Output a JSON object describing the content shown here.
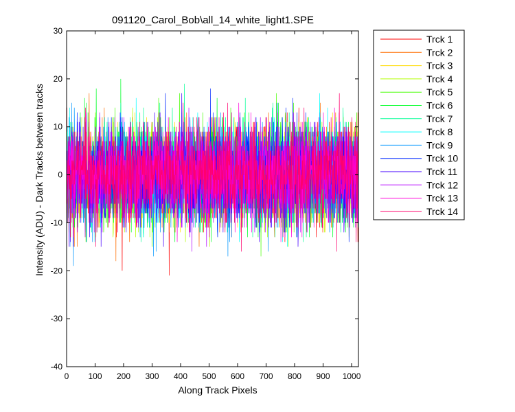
{
  "chart_data": {
    "type": "line",
    "title": "091120_Carol_Bob\\all_14_white_light1.SPE",
    "xlabel": "Along Track Pixels",
    "ylabel": "Intensity (ADU) - Dark Tracks between tracks",
    "xlim": [
      0,
      1024
    ],
    "ylim": [
      -40,
      30
    ],
    "x_ticks": [
      0,
      100,
      200,
      300,
      400,
      500,
      600,
      700,
      800,
      900,
      1000
    ],
    "y_ticks": [
      -40,
      -30,
      -20,
      -10,
      0,
      10,
      20,
      30
    ],
    "grid": false,
    "legend_position": "outside-right",
    "x_range": [
      1,
      1024
    ],
    "noise_std": 5,
    "series": [
      {
        "name": "Trck 1",
        "color": "#ff0000"
      },
      {
        "name": "Trck 2",
        "color": "#ff6e00"
      },
      {
        "name": "Trck 3",
        "color": "#ffdc00"
      },
      {
        "name": "Trck 4",
        "color": "#b4ff00"
      },
      {
        "name": "Trck 5",
        "color": "#46ff00"
      },
      {
        "name": "Trck 6",
        "color": "#00ff28"
      },
      {
        "name": "Trck 7",
        "color": "#00ff96"
      },
      {
        "name": "Trck 8",
        "color": "#00ffff"
      },
      {
        "name": "Trck 9",
        "color": "#0096ff"
      },
      {
        "name": "Trck 10",
        "color": "#0028ff"
      },
      {
        "name": "Trck 11",
        "color": "#4600ff"
      },
      {
        "name": "Trck 12",
        "color": "#b400ff"
      },
      {
        "name": "Trck 13",
        "color": "#ff00dc"
      },
      {
        "name": "Trck 14",
        "color": "#ff006e"
      }
    ]
  }
}
